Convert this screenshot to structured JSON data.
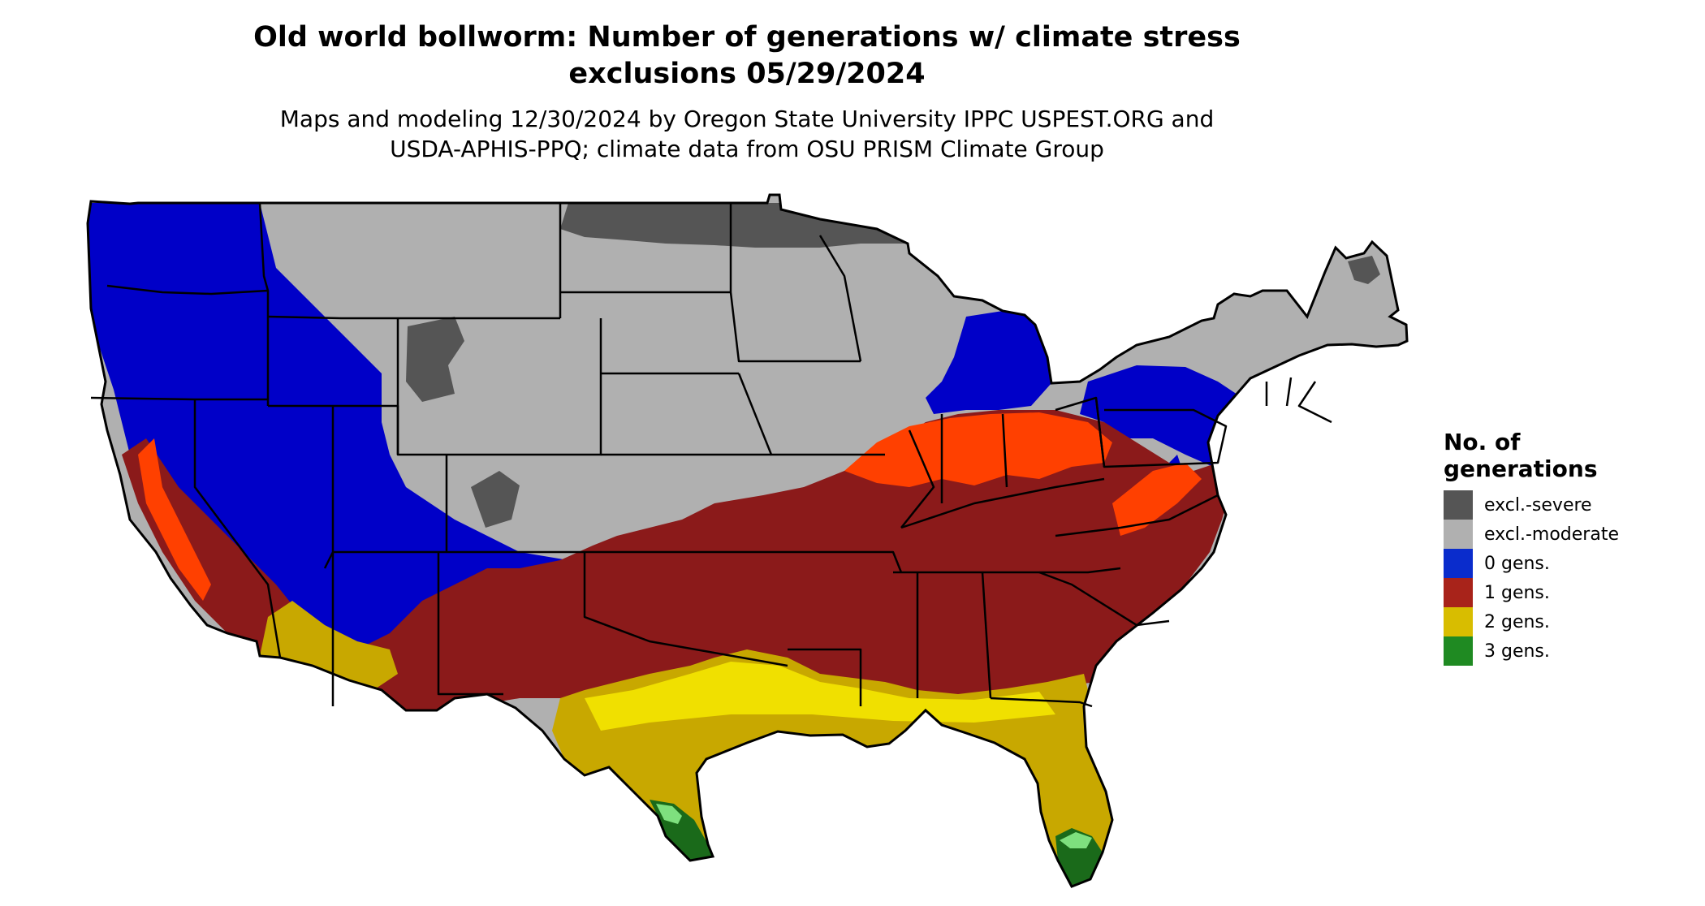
{
  "title": {
    "line1": "Old world bollworm: Number of generations w/ climate stress",
    "line2": "exclusions 05/29/2024"
  },
  "subtitle": {
    "line1": "Maps and modeling 12/30/2024 by Oregon State University IPPC USPEST.ORG and",
    "line2": "USDA-APHIS-PPQ; climate data from OSU PRISM Climate Group"
  },
  "legend": {
    "title_line1": "No. of",
    "title_line2": "generations",
    "items": [
      {
        "label": "excl.-severe",
        "color": "#555555"
      },
      {
        "label": "excl.-moderate",
        "color": "#b0b0b0"
      },
      {
        "label": "0 gens.",
        "color": "#0a2ccc"
      },
      {
        "label": "1 gens.",
        "color": "#a8231a"
      },
      {
        "label": "2 gens.",
        "color": "#d8bd00"
      },
      {
        "label": "3 gens.",
        "color": "#1f8a22"
      }
    ]
  },
  "map": {
    "colors": {
      "severe": "#555555",
      "moderate": "#b0b0b0",
      "zero": "#0000c8",
      "one": "#8b1a1a",
      "one_bright": "#ff4000",
      "two": "#c8a800",
      "two_bright": "#f0e000",
      "three": "#1a6a1a",
      "three_light": "#7ee07e",
      "border": "#000000"
    }
  }
}
